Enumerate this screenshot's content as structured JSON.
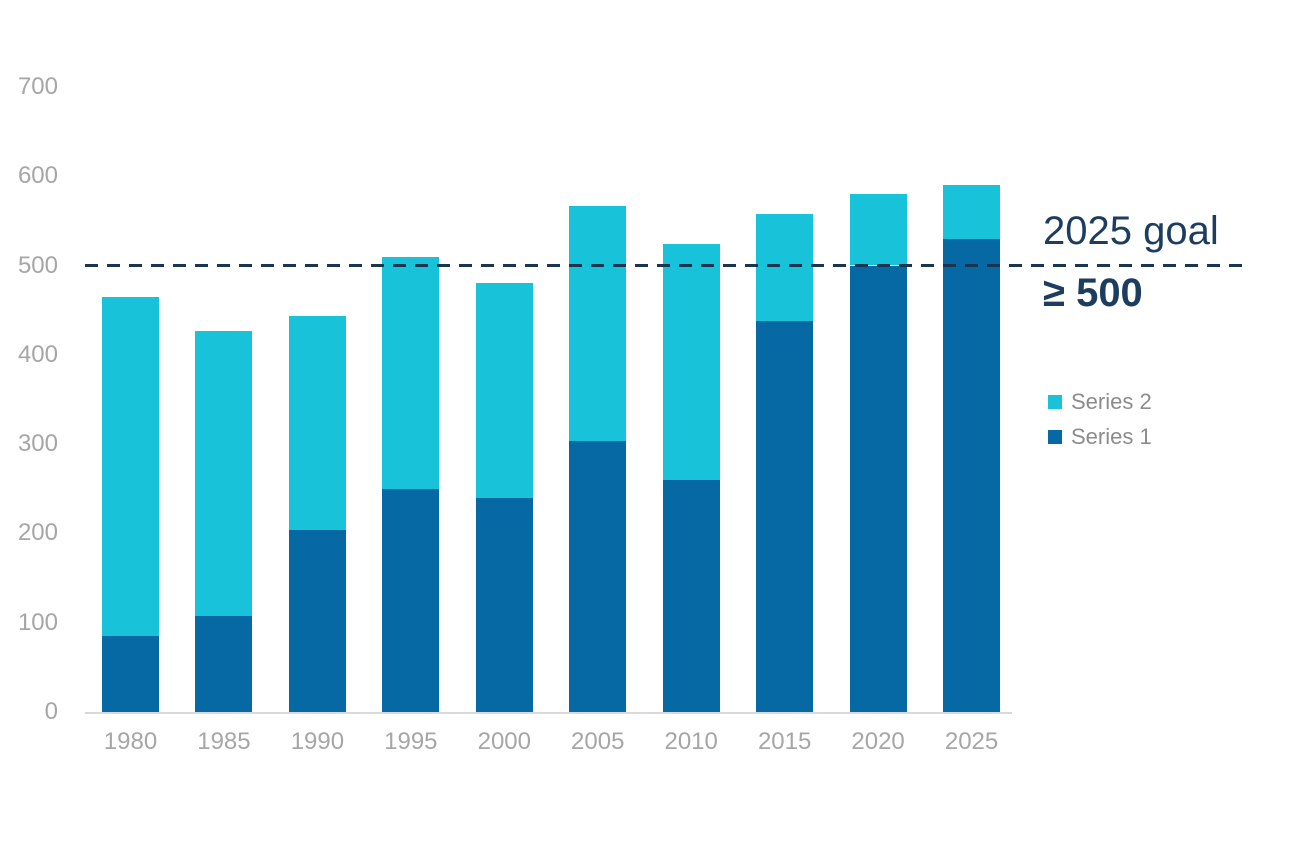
{
  "chart_data": {
    "type": "bar",
    "stacked": true,
    "title": "",
    "xlabel": "",
    "ylabel": "",
    "categories": [
      "1980",
      "1985",
      "1990",
      "1995",
      "2000",
      "2005",
      "2010",
      "2015",
      "2020",
      "2025"
    ],
    "series": [
      {
        "name": "Series 1",
        "color": "#0769a3",
        "values": [
          85,
          107,
          204,
          250,
          240,
          303,
          260,
          438,
          500,
          530
        ]
      },
      {
        "name": "Series 2",
        "color": "#18c2d8",
        "values": [
          380,
          320,
          240,
          259,
          240,
          264,
          264,
          120,
          80,
          60
        ]
      }
    ],
    "totals": [
      465,
      427,
      444,
      509,
      480,
      567,
      524,
      558,
      580,
      590
    ],
    "ylim": [
      0,
      700
    ],
    "yticks": [
      0,
      100,
      200,
      300,
      400,
      500,
      600,
      700
    ],
    "grid": false,
    "legend_position": "right",
    "goal_line": {
      "value": 500,
      "style": "dashed",
      "color": "#1b3550",
      "label": "2025 goal",
      "sublabel": "≥ 500"
    }
  },
  "annotation": {
    "line1": "2025 goal",
    "line2": "≥ 500"
  },
  "legend": {
    "items": [
      {
        "label": "Series 2",
        "color": "#18c2d8"
      },
      {
        "label": "Series 1",
        "color": "#0769a3"
      }
    ]
  },
  "colors": {
    "series1": "#0769a3",
    "series2": "#18c2d8",
    "goal_navy": "#1b3550",
    "goal_text_navy": "#1c3d5f",
    "axis_label_gray": "#a6a6a6",
    "legend_label_gray": "#8c8c8c",
    "baseline_gray": "#d9d9d9",
    "background": "#ffffff"
  }
}
